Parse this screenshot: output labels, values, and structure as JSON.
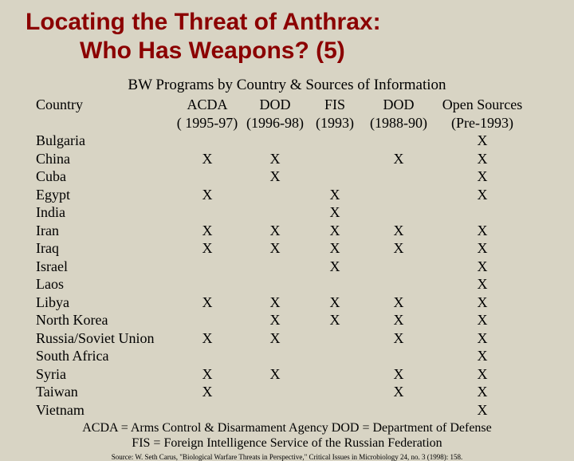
{
  "title": {
    "line1": "Locating the Threat of Anthrax:",
    "line2": "Who Has Weapons? (5)"
  },
  "subtitle": "BW Programs by Country & Sources of Information",
  "columns": {
    "country": "Country",
    "acda": "ACDA",
    "acda_sub": "( 1995-97)",
    "dod": "DOD",
    "dod_sub": "(1996-98)",
    "fis": "FIS",
    "fis_sub": "(1993)",
    "dod2": "DOD",
    "dod2_sub": "(1988-90)",
    "open": "Open Sources",
    "open_sub": "(Pre-1993)"
  },
  "rows": [
    {
      "country": "Bulgaria",
      "acda": "",
      "dod": "",
      "fis": "",
      "dod2": "",
      "open": "X"
    },
    {
      "country": "China",
      "acda": "X",
      "dod": "X",
      "fis": "",
      "dod2": "X",
      "open": "X"
    },
    {
      "country": "Cuba",
      "acda": "",
      "dod": "X",
      "fis": "",
      "dod2": "",
      "open": "X"
    },
    {
      "country": "Egypt",
      "acda": "X",
      "dod": "",
      "fis": "X",
      "dod2": "",
      "open": "X"
    },
    {
      "country": "India",
      "acda": "",
      "dod": "",
      "fis": "X",
      "dod2": "",
      "open": ""
    },
    {
      "country": "Iran",
      "acda": "X",
      "dod": "X",
      "fis": "X",
      "dod2": "X",
      "open": "X"
    },
    {
      "country": "Iraq",
      "acda": "X",
      "dod": "X",
      "fis": "X",
      "dod2": "X",
      "open": "X"
    },
    {
      "country": "Israel",
      "acda": "",
      "dod": "",
      "fis": "X",
      "dod2": "",
      "open": "X"
    },
    {
      "country": "Laos",
      "acda": "",
      "dod": "",
      "fis": "",
      "dod2": "",
      "open": "X"
    },
    {
      "country": "Libya",
      "acda": "X",
      "dod": "X",
      "fis": "X",
      "dod2": "X",
      "open": "X"
    },
    {
      "country": "North Korea",
      "acda": "",
      "dod": "X",
      "fis": "X",
      "dod2": "X",
      "open": "X"
    },
    {
      "country": "Russia/Soviet Union",
      "acda": "X",
      "dod": "X",
      "fis": "",
      "dod2": "X",
      "open": "X"
    },
    {
      "country": "South Africa",
      "acda": "",
      "dod": "",
      "fis": "",
      "dod2": "",
      "open": "X"
    },
    {
      "country": "Syria",
      "acda": "X",
      "dod": "X",
      "fis": "",
      "dod2": "X",
      "open": "X"
    },
    {
      "country": "Taiwan",
      "acda": "X",
      "dod": "",
      "fis": "",
      "dod2": "X",
      "open": "X"
    },
    {
      "country": "Vietnam",
      "acda": "",
      "dod": "",
      "fis": "",
      "dod2": "",
      "open": "X"
    }
  ],
  "legend": {
    "line1": "ACDA = Arms Control & Disarmament Agency DOD = Department of Defense",
    "line2": "FIS = Foreign Intelligence Service of the Russian Federation"
  },
  "source": "Source: W. Seth Carus, \"Biological Warfare Threats in Perspective,\" Critical Issues in Microbiology 24, no. 3 (1998): 158."
}
